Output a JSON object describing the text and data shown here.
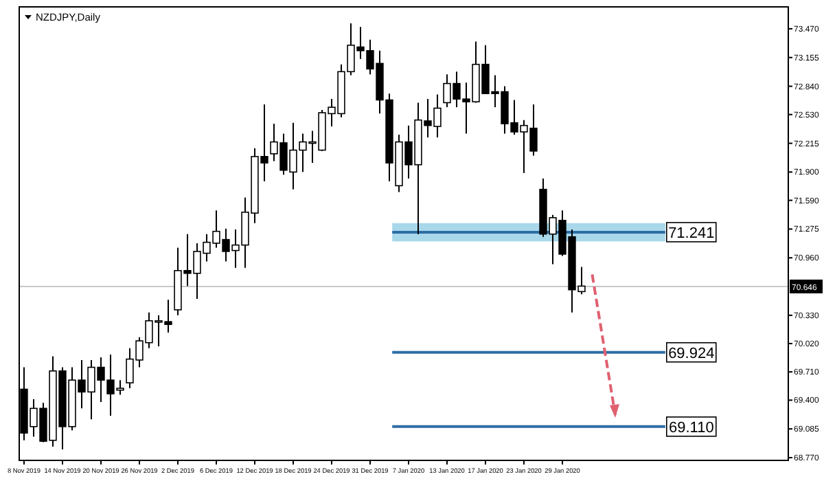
{
  "chart_data": {
    "type": "candlestick",
    "title": "NZDJPY,Daily",
    "categories": [
      "8 Nov 2019",
      null,
      null,
      null,
      "14 Nov 2019",
      null,
      null,
      null,
      "20 Nov 2019",
      null,
      null,
      null,
      "26 Nov 2019",
      null,
      null,
      null,
      "2 Dec 2019",
      null,
      null,
      null,
      "6 Dec 2019",
      null,
      null,
      null,
      "12 Dec 2019",
      null,
      null,
      null,
      "18 Dec 2019",
      null,
      null,
      null,
      "24 Dec 2019",
      null,
      null,
      null,
      "31 Dec 2019",
      null,
      null,
      null,
      "7 Jan 2020",
      null,
      null,
      null,
      "13 Jan 2020",
      null,
      null,
      null,
      "17 Jan 2020",
      null,
      null,
      null,
      "23 Jan 2020",
      null,
      null,
      null,
      "29 Jan 2020",
      null,
      null,
      null,
      null,
      null,
      null,
      null,
      null,
      null,
      null,
      null,
      null,
      null,
      null,
      null,
      null,
      null,
      null,
      null,
      null,
      null,
      null,
      null
    ],
    "ohlc": [
      [
        69.52,
        69.76,
        68.96,
        69.04
      ],
      [
        69.11,
        69.41,
        69.0,
        69.31
      ],
      [
        69.31,
        69.37,
        68.94,
        68.95
      ],
      [
        68.96,
        69.88,
        68.89,
        69.72
      ],
      [
        69.72,
        69.76,
        68.86,
        69.11
      ],
      [
        69.11,
        69.76,
        69.07,
        69.62
      ],
      [
        69.62,
        69.84,
        69.31,
        69.49
      ],
      [
        69.49,
        69.84,
        69.19,
        69.76
      ],
      [
        69.76,
        69.87,
        69.38,
        69.62
      ],
      [
        69.62,
        69.9,
        69.23,
        69.47
      ],
      [
        69.51,
        69.62,
        69.46,
        69.53
      ],
      [
        69.59,
        69.97,
        69.53,
        69.85
      ],
      [
        69.84,
        70.09,
        69.76,
        70.05
      ],
      [
        70.03,
        70.36,
        69.97,
        70.27
      ],
      [
        70.26,
        70.33,
        69.99,
        70.27
      ],
      [
        70.26,
        70.5,
        70.14,
        70.23
      ],
      [
        70.39,
        71.07,
        70.33,
        70.82
      ],
      [
        70.82,
        71.22,
        70.65,
        70.79
      ],
      [
        70.79,
        71.12,
        70.51,
        71.03
      ],
      [
        71.01,
        71.22,
        70.92,
        71.13
      ],
      [
        71.12,
        71.48,
        71.07,
        71.25
      ],
      [
        71.16,
        71.28,
        70.92,
        71.03
      ],
      [
        71.04,
        71.27,
        70.85,
        71.1
      ],
      [
        71.1,
        71.62,
        70.85,
        71.46
      ],
      [
        71.45,
        72.16,
        71.34,
        72.07
      ],
      [
        72.07,
        72.64,
        71.8,
        72.0
      ],
      [
        72.1,
        72.43,
        72.02,
        72.23
      ],
      [
        72.22,
        72.32,
        71.87,
        71.92
      ],
      [
        71.9,
        72.44,
        71.71,
        72.14
      ],
      [
        72.14,
        72.32,
        71.9,
        72.23
      ],
      [
        72.22,
        72.35,
        72.0,
        72.23
      ],
      [
        72.14,
        72.58,
        72.13,
        72.55
      ],
      [
        72.54,
        72.7,
        72.4,
        72.61
      ],
      [
        72.54,
        73.08,
        72.5,
        73.0
      ],
      [
        73.0,
        73.53,
        72.96,
        73.29
      ],
      [
        73.27,
        73.49,
        73.14,
        73.23
      ],
      [
        73.23,
        73.35,
        72.97,
        73.03
      ],
      [
        73.09,
        73.23,
        72.54,
        72.69
      ],
      [
        72.69,
        72.76,
        71.8,
        72.0
      ],
      [
        71.75,
        72.31,
        71.68,
        72.23
      ],
      [
        72.23,
        72.41,
        71.83,
        71.98
      ],
      [
        71.98,
        72.66,
        71.22,
        72.47
      ],
      [
        72.46,
        72.7,
        72.28,
        72.41
      ],
      [
        72.4,
        72.75,
        72.28,
        72.6
      ],
      [
        72.66,
        72.97,
        72.61,
        72.87
      ],
      [
        72.87,
        73.0,
        72.61,
        72.7
      ],
      [
        72.7,
        72.88,
        72.32,
        72.67
      ],
      [
        72.67,
        73.33,
        72.66,
        73.08
      ],
      [
        73.08,
        73.29,
        72.76,
        72.76
      ],
      [
        72.78,
        72.96,
        72.61,
        72.76
      ],
      [
        72.78,
        72.84,
        72.32,
        72.43
      ],
      [
        72.44,
        72.69,
        72.31,
        72.34
      ],
      [
        72.34,
        72.47,
        71.89,
        72.41
      ],
      [
        72.38,
        72.64,
        72.08,
        72.13
      ],
      [
        71.71,
        71.83,
        71.19,
        71.22
      ],
      [
        71.22,
        71.43,
        70.89,
        71.4
      ],
      [
        71.37,
        71.48,
        70.98,
        71.0
      ],
      [
        71.19,
        71.27,
        70.36,
        70.61
      ],
      [
        70.59,
        70.86,
        70.56,
        70.65
      ],
      null,
      null,
      null,
      null,
      null,
      null,
      null,
      null,
      null,
      null,
      null,
      null,
      null,
      null,
      null,
      null,
      null,
      null,
      null,
      null,
      null
    ],
    "ylim": [
      68.74,
      73.71
    ],
    "yticks": [
      {
        "value": 73.47,
        "label": "73.470"
      },
      73.155,
      {
        "value": 72.84,
        "label": "72.840"
      },
      {
        "value": 72.53,
        "label": "72.530"
      },
      72.215,
      {
        "value": 71.9,
        "label": "71.900"
      },
      {
        "value": 71.59,
        "label": "71.590"
      },
      71.275,
      {
        "value": 70.96,
        "label": "70.960"
      },
      {
        "value": 70.33,
        "label": "70.330"
      },
      {
        "value": 70.02,
        "label": "70.020"
      },
      {
        "value": 69.71,
        "label": "69.710"
      },
      {
        "value": 69.4,
        "label": "69.400"
      },
      69.085,
      {
        "value": 68.77,
        "label": "68.770"
      }
    ],
    "ref_lines": [
      {
        "axis": "y",
        "value": 70.646,
        "label": "70.646",
        "color": "#c0c0c0"
      },
      {
        "axis": "y",
        "value": 71.241,
        "label": "71.241",
        "color": "#2e6da4"
      },
      {
        "axis": "y",
        "value": 69.924,
        "label": "69.924",
        "color": "#2e6da4"
      },
      {
        "axis": "y",
        "value": 69.11,
        "label": "69.110",
        "color": "#2e6da4"
      }
    ],
    "bands": [
      {
        "axis": "y",
        "from": 71.14,
        "to": 71.34,
        "color": "#a8d8ea"
      }
    ],
    "grid": false
  }
}
